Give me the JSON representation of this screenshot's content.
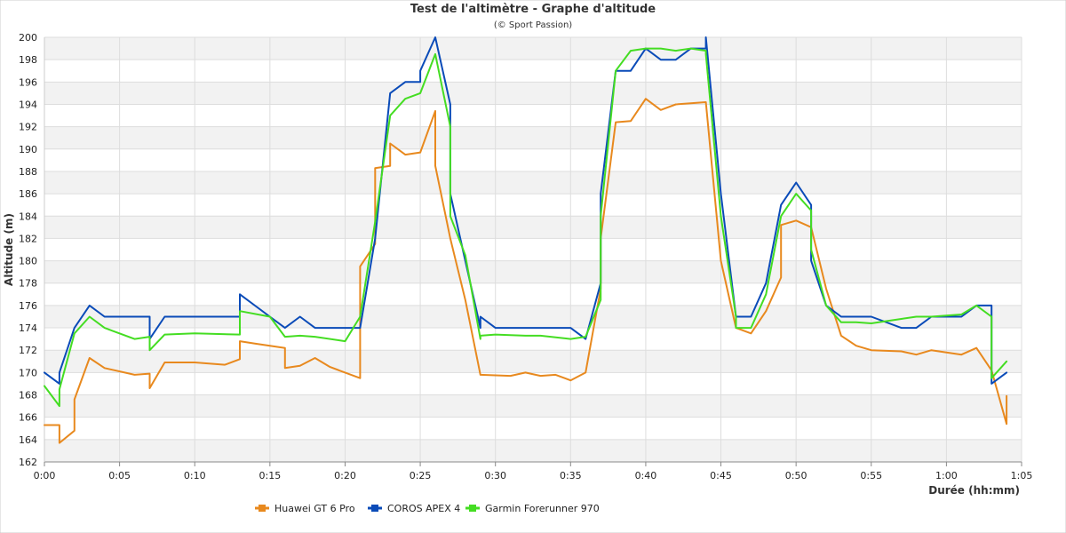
{
  "chart_data": {
    "type": "line",
    "title": "Test de l'altimètre - Graphe d'altitude",
    "subtitle": "(© Sport Passion)",
    "xlabel": "Durée (hh:mm)",
    "ylabel": "Altitude (m)",
    "xlim": [
      "0:00",
      "1:05"
    ],
    "ylim": [
      162,
      200
    ],
    "x_ticks": [
      "0:00",
      "0:05",
      "0:10",
      "0:15",
      "0:20",
      "0:25",
      "0:30",
      "0:35",
      "0:40",
      "0:45",
      "0:50",
      "0:55",
      "1:00",
      "1:05"
    ],
    "y_ticks": [
      162,
      164,
      166,
      168,
      170,
      172,
      174,
      176,
      178,
      180,
      182,
      184,
      186,
      188,
      190,
      192,
      194,
      196,
      198,
      200
    ],
    "grid": true,
    "alternating_bands": true,
    "legend_position": "bottom",
    "series": [
      {
        "name": "Huawei GT 6 Pro",
        "color": "#e8891e",
        "x": [
          "0:00",
          "0:01",
          "0:01",
          "0:02",
          "0:02",
          "0:03",
          "0:04",
          "0:06",
          "0:07",
          "0:07",
          "0:08",
          "0:10",
          "0:12",
          "0:13",
          "0:13",
          "0:14",
          "0:16",
          "0:16",
          "0:17",
          "0:18",
          "0:19",
          "0:21",
          "0:21",
          "0:21",
          "0:22",
          "0:22",
          "0:23",
          "0:23",
          "0:24",
          "0:25",
          "0:26",
          "0:26",
          "0:27",
          "0:28",
          "0:29",
          "0:31",
          "0:32",
          "0:33",
          "0:34",
          "0:35",
          "0:36",
          "0:37",
          "0:37",
          "0:38",
          "0:39",
          "0:40",
          "0:41",
          "0:42",
          "0:44",
          "0:45",
          "0:46",
          "0:47",
          "0:48",
          "0:49",
          "0:49",
          "0:50",
          "0:51",
          "0:52",
          "0:53",
          "0:54",
          "0:55",
          "0:57",
          "0:58",
          "0:59",
          "1:01",
          "1:02",
          "1:03",
          "1:04",
          "1:04"
        ],
        "values": [
          165.3,
          165.3,
          163.7,
          164.8,
          167.6,
          171.3,
          170.4,
          169.8,
          169.9,
          168.6,
          170.9,
          170.9,
          170.7,
          171.2,
          172.8,
          172.6,
          172.2,
          170.4,
          170.6,
          171.3,
          170.5,
          169.5,
          172,
          179.5,
          181.5,
          188.3,
          188.5,
          190.5,
          189.5,
          189.7,
          193.4,
          188.5,
          182,
          176.5,
          169.8,
          169.7,
          170,
          169.7,
          169.8,
          169.3,
          170,
          177.5,
          182,
          192.4,
          192.5,
          194.5,
          193.5,
          194,
          194.2,
          180,
          174,
          173.5,
          175.5,
          178.5,
          183.2,
          183.6,
          183,
          177.5,
          173.3,
          172.4,
          172,
          171.9,
          171.6,
          172,
          171.6,
          172.2,
          170.2,
          165.4,
          167.9
        ]
      },
      {
        "name": "COROS APEX 4",
        "color": "#0a4bb8",
        "x": [
          "0:00",
          "0:01",
          "0:01",
          "0:02",
          "0:03",
          "0:04",
          "0:06",
          "0:07",
          "0:07",
          "0:08",
          "0:10",
          "0:13",
          "0:13",
          "0:15",
          "0:16",
          "0:17",
          "0:18",
          "0:20",
          "0:21",
          "0:22",
          "0:23",
          "0:24",
          "0:25",
          "0:25",
          "0:26",
          "0:27",
          "0:27",
          "0:28",
          "0:29",
          "0:29",
          "0:30",
          "0:32",
          "0:33",
          "0:35",
          "0:36",
          "0:37",
          "0:37",
          "0:38",
          "0:39",
          "0:40",
          "0:41",
          "0:42",
          "0:43",
          "0:44",
          "0:44",
          "0:45",
          "0:46",
          "0:46",
          "0:47",
          "0:48",
          "0:49",
          "0:50",
          "0:51",
          "0:51",
          "0:52",
          "0:53",
          "0:54",
          "0:55",
          "0:57",
          "0:58",
          "0:59",
          "1:01",
          "1:02",
          "1:03",
          "1:03",
          "1:04"
        ],
        "values": [
          170,
          169,
          170,
          174,
          176,
          175,
          175,
          175,
          173,
          175,
          175,
          175,
          177,
          175,
          174,
          175,
          174,
          174,
          174,
          182,
          195,
          196,
          196,
          197,
          200,
          194,
          186,
          180,
          174,
          175,
          174,
          174,
          174,
          174,
          173,
          178,
          186,
          197,
          197,
          199,
          198,
          198,
          199,
          199,
          200,
          186,
          175,
          175,
          175,
          178,
          185,
          187,
          185,
          180,
          176,
          175,
          175,
          175,
          174,
          174,
          175,
          175,
          176,
          176,
          169,
          170
        ]
      },
      {
        "name": "Garmin Forerunner 970",
        "color": "#44dd22",
        "x": [
          "0:00",
          "0:01",
          "0:01",
          "0:02",
          "0:03",
          "0:04",
          "0:06",
          "0:07",
          "0:07",
          "0:08",
          "0:10",
          "0:13",
          "0:13",
          "0:15",
          "0:16",
          "0:17",
          "0:18",
          "0:20",
          "0:21",
          "0:22",
          "0:23",
          "0:24",
          "0:25",
          "0:25",
          "0:26",
          "0:27",
          "0:27",
          "0:28",
          "0:29",
          "0:29",
          "0:30",
          "0:32",
          "0:33",
          "0:35",
          "0:36",
          "0:37",
          "0:37",
          "0:38",
          "0:39",
          "0:40",
          "0:41",
          "0:42",
          "0:43",
          "0:44",
          "0:44",
          "0:45",
          "0:46",
          "0:46",
          "0:47",
          "0:48",
          "0:49",
          "0:50",
          "0:51",
          "0:51",
          "0:52",
          "0:53",
          "0:54",
          "0:55",
          "0:57",
          "0:58",
          "0:59",
          "1:01",
          "1:02",
          "1:03",
          "1:03",
          "1:04"
        ],
        "values": [
          168.8,
          167,
          168.5,
          173.5,
          175,
          174,
          173,
          173.2,
          172,
          173.4,
          173.5,
          173.4,
          175.5,
          175,
          173.2,
          173.3,
          173.2,
          172.8,
          175,
          183.5,
          193,
          194.5,
          195,
          195,
          198.5,
          192,
          184,
          180.5,
          173,
          173.3,
          173.4,
          173.3,
          173.3,
          173,
          173.2,
          176.5,
          184,
          197,
          198.8,
          199,
          199,
          198.8,
          199,
          198.8,
          198.5,
          184,
          175,
          174,
          174,
          177,
          184,
          186,
          184.5,
          181,
          176,
          174.5,
          174.5,
          174.4,
          174.8,
          175,
          175,
          175.2,
          176,
          175,
          169.5,
          171
        ]
      }
    ]
  }
}
